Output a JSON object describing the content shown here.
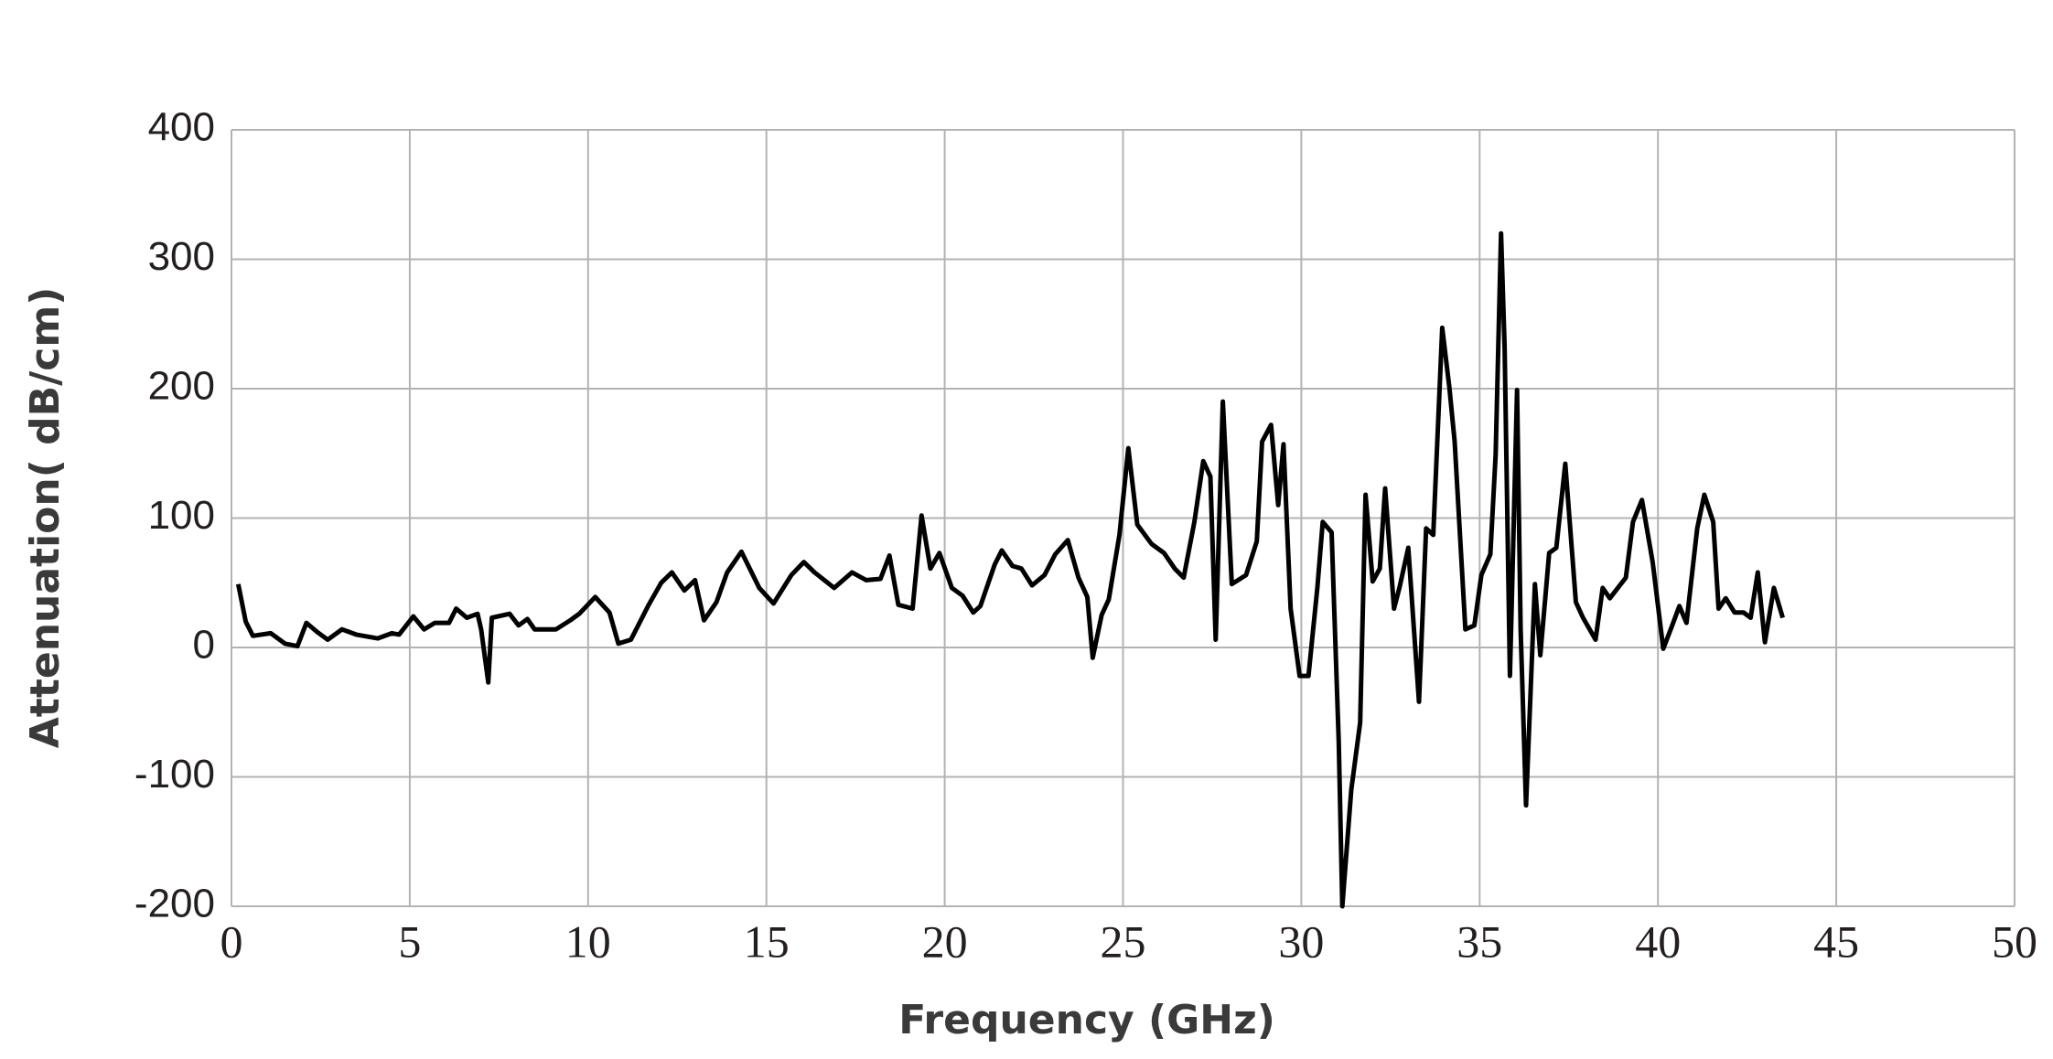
{
  "chart_data": {
    "type": "line",
    "x_label": "Frequency (GHz)",
    "y_label": "Attenuation( dB/cm)",
    "xlim": [
      0,
      50
    ],
    "xticks": [
      0,
      5,
      10,
      15,
      20,
      25,
      30,
      35,
      40,
      45,
      50
    ],
    "ylim": [
      -200,
      400
    ],
    "yticks": [
      -200,
      -100,
      0,
      100,
      200,
      300,
      400
    ],
    "grid": true,
    "color": "#000000",
    "x": [
      0.19,
      0.4,
      0.6,
      1.1,
      1.5,
      1.85,
      2.1,
      2.4,
      2.7,
      3.1,
      3.5,
      4.1,
      4.5,
      4.7,
      5.1,
      5.4,
      5.7,
      6.1,
      6.3,
      6.6,
      6.9,
      7.0,
      7.2,
      7.3,
      7.8,
      8.05,
      8.3,
      8.5,
      9.1,
      9.5,
      9.75,
      10.2,
      10.6,
      10.85,
      11.2,
      11.7,
      12.05,
      12.35,
      12.7,
      13.0,
      13.25,
      13.6,
      13.9,
      14.3,
      14.8,
      15.2,
      15.7,
      16.05,
      16.35,
      16.9,
      17.4,
      17.8,
      18.2,
      18.45,
      18.7,
      19.1,
      19.35,
      19.6,
      19.85,
      20.2,
      20.5,
      20.8,
      21.0,
      21.4,
      21.6,
      21.9,
      22.15,
      22.45,
      22.8,
      23.1,
      23.45,
      23.75,
      24.0,
      24.15,
      24.4,
      24.6,
      24.9,
      25.15,
      25.4,
      25.8,
      26.15,
      26.45,
      26.7,
      27.0,
      27.25,
      27.45,
      27.6,
      27.8,
      28.05,
      28.45,
      28.75,
      28.9,
      29.15,
      29.35,
      29.5,
      29.7,
      29.95,
      30.2,
      30.45,
      30.6,
      30.85,
      31.05,
      31.15,
      31.4,
      31.65,
      31.8,
      32.0,
      32.2,
      32.35,
      32.6,
      32.75,
      33.0,
      33.3,
      33.5,
      33.7,
      33.95,
      34.15,
      34.3,
      34.6,
      34.85,
      35.05,
      35.3,
      35.45,
      35.6,
      35.7,
      35.85,
      36.05,
      36.15,
      36.3,
      36.55,
      36.7,
      36.95,
      37.15,
      37.4,
      37.7,
      37.9,
      38.25,
      38.45,
      38.65,
      39.1,
      39.3,
      39.55,
      39.85,
      40.15,
      40.4,
      40.6,
      40.8,
      41.1,
      41.3,
      41.55,
      41.7,
      41.9,
      42.15,
      42.4,
      42.6,
      42.8,
      43.0,
      43.25,
      43.5
    ],
    "values": [
      49,
      20,
      9,
      11,
      3,
      1,
      19,
      12,
      6,
      14,
      10,
      7,
      11,
      10,
      24,
      14,
      19,
      19,
      30,
      23,
      26,
      14,
      -27,
      23,
      26,
      17,
      22,
      14,
      14,
      21,
      26,
      39,
      27,
      3,
      6,
      33,
      50,
      58,
      44,
      52,
      21,
      35,
      58,
      74,
      46,
      34,
      56,
      66,
      58,
      46,
      58,
      52,
      53,
      71,
      33,
      30,
      102,
      61,
      73,
      46,
      40,
      27,
      32,
      64,
      75,
      63,
      61,
      48,
      56,
      72,
      83,
      54,
      39,
      -8,
      25,
      37,
      87,
      154,
      95,
      80,
      73,
      61,
      54,
      97,
      144,
      132,
      6,
      190,
      49,
      56,
      82,
      159,
      172,
      110,
      157,
      30,
      -22,
      -22,
      46,
      97,
      89,
      -73,
      -200,
      -110,
      -58,
      118,
      51,
      61,
      123,
      30,
      46,
      77,
      -42,
      92,
      87,
      247,
      201,
      159,
      14,
      17,
      56,
      72,
      149,
      320,
      232,
      -22,
      199,
      14,
      -122,
      49,
      -6,
      73,
      77,
      142,
      35,
      23,
      6,
      46,
      38,
      54,
      97,
      114,
      66,
      -1,
      17,
      32,
      19,
      92,
      118,
      97,
      30,
      38,
      27,
      27,
      23,
      58,
      4,
      46,
      23
    ]
  }
}
